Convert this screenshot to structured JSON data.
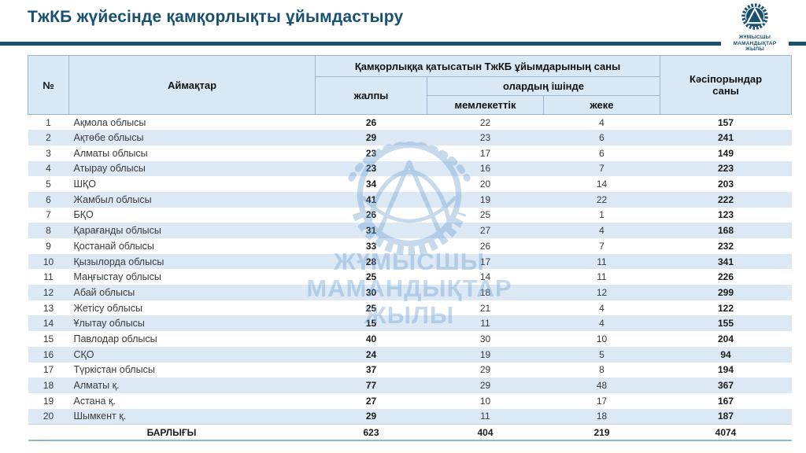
{
  "page": {
    "title": "ТжКБ жүйесінде қамқорлықты ұйымдастыру"
  },
  "colors": {
    "accent_dark_blue": "#175070",
    "header_cell_bg": "#d9e8f5",
    "row_band_blue": "#dce9f5",
    "table_border": "#9cb6ce"
  },
  "logo": {
    "icon": "gear-emblem-icon",
    "lines": [
      "ЖҰМЫСШЫ",
      "МАМАНДЫҚТАР",
      "ЖЫЛЫ"
    ]
  },
  "watermark": {
    "icon": "gear-emblem-watermark-icon",
    "lines": [
      "ЖҰМЫСШЫ",
      "МАМАНДЫҚТАР",
      "ЖЫЛЫ"
    ]
  },
  "table": {
    "headers": {
      "num": "№",
      "region": "Аймақтар",
      "group": "Қамқорлыққа қатысатын ТжКБ ұйымдарының саны",
      "total": "жалпы",
      "subgroup": "олардың ішінде",
      "state": "мемлекеттік",
      "private": "жеке",
      "enterprises": "Кәсіпорындар саны"
    },
    "rows": [
      {
        "num": 1,
        "region": "Ақмола облысы",
        "total": 26,
        "state": 22,
        "private": 4,
        "enterprises": 157
      },
      {
        "num": 2,
        "region": "Ақтөбе облысы",
        "total": 29,
        "state": 23,
        "private": 6,
        "enterprises": 241
      },
      {
        "num": 3,
        "region": "Алматы облысы",
        "total": 23,
        "state": 17,
        "private": 6,
        "enterprises": 149
      },
      {
        "num": 4,
        "region": "Атырау облысы",
        "total": 23,
        "state": 16,
        "private": 7,
        "enterprises": 223
      },
      {
        "num": 5,
        "region": "ШҚО",
        "total": 34,
        "state": 20,
        "private": 14,
        "enterprises": 203
      },
      {
        "num": 6,
        "region": "Жамбыл облысы",
        "total": 41,
        "state": 19,
        "private": 22,
        "enterprises": 222
      },
      {
        "num": 7,
        "region": "БҚО",
        "total": 26,
        "state": 25,
        "private": 1,
        "enterprises": 123
      },
      {
        "num": 8,
        "region": "Қарағанды облысы",
        "total": 31,
        "state": 27,
        "private": 4,
        "enterprises": 168
      },
      {
        "num": 9,
        "region": "Қостанай облысы",
        "total": 33,
        "state": 26,
        "private": 7,
        "enterprises": 232
      },
      {
        "num": 10,
        "region": "Қызылорда облысы",
        "total": 28,
        "state": 17,
        "private": 11,
        "enterprises": 341
      },
      {
        "num": 11,
        "region": "Маңғыстау облысы",
        "total": 25,
        "state": 14,
        "private": 11,
        "enterprises": 226
      },
      {
        "num": 12,
        "region": "Абай облысы",
        "total": 30,
        "state": 18,
        "private": 12,
        "enterprises": 299
      },
      {
        "num": 13,
        "region": "Жетісу облысы",
        "total": 25,
        "state": 21,
        "private": 4,
        "enterprises": 122
      },
      {
        "num": 14,
        "region": "Ұлытау облысы",
        "total": 15,
        "state": 11,
        "private": 4,
        "enterprises": 155
      },
      {
        "num": 15,
        "region": "Павлодар облысы",
        "total": 40,
        "state": 30,
        "private": 10,
        "enterprises": 204
      },
      {
        "num": 16,
        "region": "СҚО",
        "total": 24,
        "state": 19,
        "private": 5,
        "enterprises": 94
      },
      {
        "num": 17,
        "region": "Түркістан облысы",
        "total": 37,
        "state": 29,
        "private": 8,
        "enterprises": 194
      },
      {
        "num": 18,
        "region": "Алматы қ.",
        "total": 77,
        "state": 29,
        "private": 48,
        "enterprises": 367
      },
      {
        "num": 19,
        "region": "Астана қ.",
        "total": 27,
        "state": 10,
        "private": 17,
        "enterprises": 167
      },
      {
        "num": 20,
        "region": "Шымкент қ.",
        "total": 29,
        "state": 11,
        "private": 18,
        "enterprises": 187
      }
    ],
    "footer": {
      "label": "БАРЛЫҒЫ",
      "total": 623,
      "state": 404,
      "private": 219,
      "enterprises": 4074
    }
  }
}
